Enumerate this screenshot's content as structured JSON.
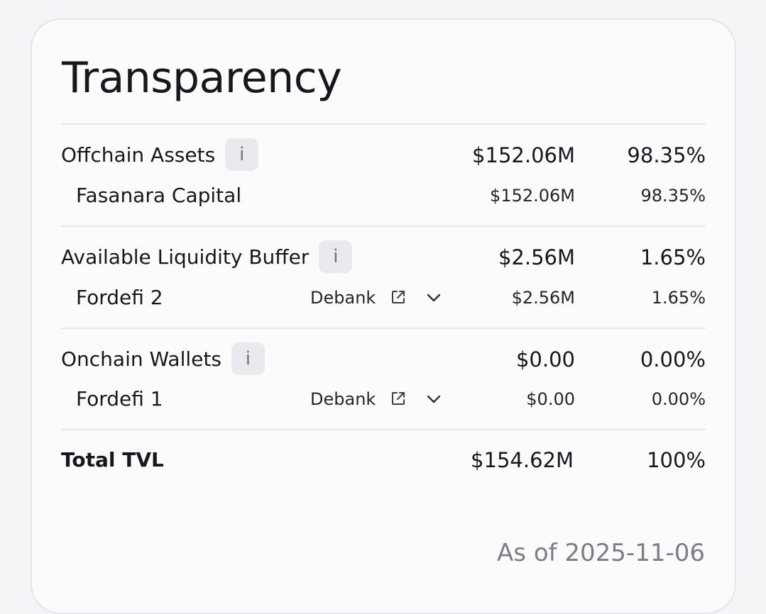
{
  "title": "Transparency",
  "sections": [
    {
      "label": "Offchain Assets",
      "info": "i",
      "amount": "$152.06M",
      "percent": "98.35%",
      "items": [
        {
          "label": "Fasanara Capital",
          "amount": "$152.06M",
          "percent": "98.35%"
        }
      ]
    },
    {
      "label": "Available Liquidity Buffer",
      "info": "i",
      "amount": "$2.56M",
      "percent": "1.65%",
      "items": [
        {
          "label": "Fordefi 2",
          "link": "Debank",
          "amount": "$2.56M",
          "percent": "1.65%"
        }
      ]
    },
    {
      "label": "Onchain Wallets",
      "info": "i",
      "amount": "$0.00",
      "percent": "0.00%",
      "items": [
        {
          "label": "Fordefi 1",
          "link": "Debank",
          "amount": "$0.00",
          "percent": "0.00%"
        }
      ]
    }
  ],
  "total": {
    "label": "Total TVL",
    "amount": "$154.62M",
    "percent": "100%"
  },
  "as_of": "As of 2025-11-06",
  "icons": {
    "external": "external-link-icon",
    "chevron": "chevron-down-icon"
  },
  "colors": {
    "text": "#15181d",
    "muted": "#7a7f87",
    "info_bg": "#e8eaed",
    "divider": "#e4e7eb"
  }
}
